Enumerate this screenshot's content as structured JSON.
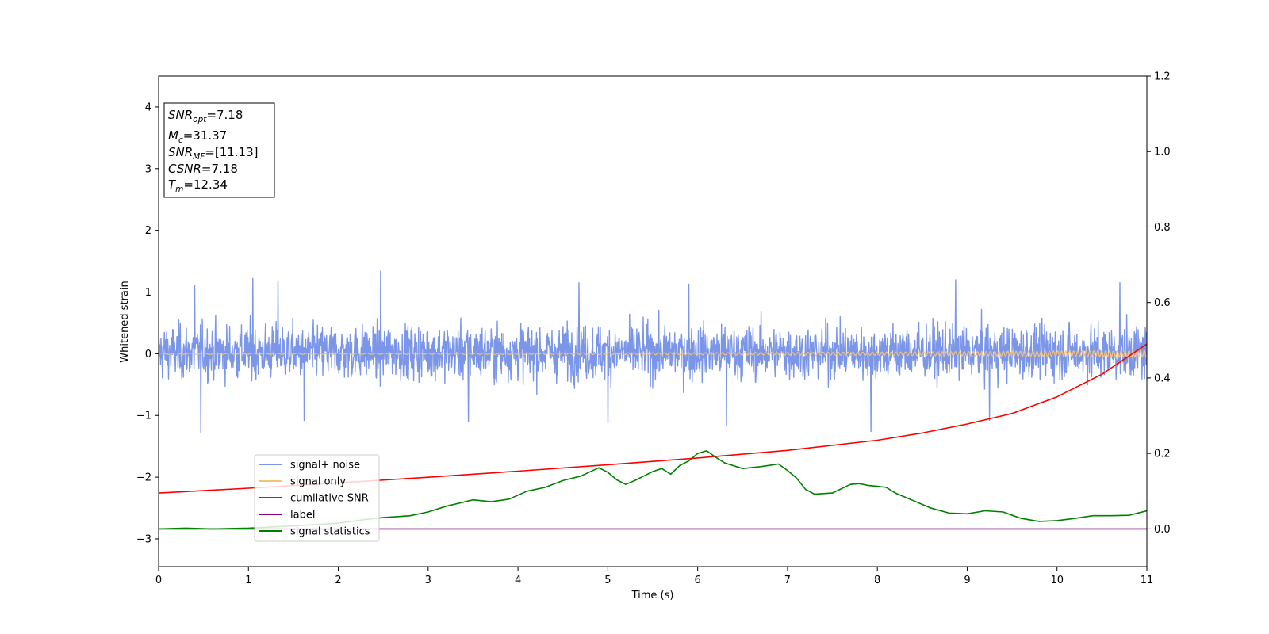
{
  "chart_data": {
    "type": "line",
    "title": "",
    "xlabel": "Time (s)",
    "ylabel": "Whitened strain",
    "y2label": "",
    "xlim": [
      0,
      11
    ],
    "ylim": [
      -3.45,
      4.5
    ],
    "y2lim": [
      -0.1,
      1.2
    ],
    "xticks": [
      "0",
      "1",
      "2",
      "3",
      "4",
      "5",
      "6",
      "7",
      "8",
      "9",
      "10",
      "11"
    ],
    "yticks": [
      "−3",
      "−2",
      "−1",
      "0",
      "1",
      "2",
      "3",
      "4"
    ],
    "y2ticks": [
      "0.0",
      "0.2",
      "0.4",
      "0.6",
      "0.8",
      "1.0",
      "1.2"
    ],
    "grid": false,
    "legend_position": "lower-left",
    "annotation": [
      {
        "sym": "SNR",
        "sub": "opt",
        "value": "=7.18"
      },
      {
        "sym": "M",
        "sub": "c",
        "value": "=31.37"
      },
      {
        "sym": "SNR",
        "sub": "MF",
        "value": "=[11.13]"
      },
      {
        "sym": "CSNR",
        "sub": "",
        "value": "=7.18"
      },
      {
        "sym": "T",
        "sub": "m",
        "value": "=12.34"
      }
    ],
    "series": [
      {
        "name": "signal+ noise",
        "axis": "left",
        "color": "#7b96e8",
        "style": "noise",
        "band": [
          -0.7,
          0.75
        ],
        "peaks": [
          {
            "x": 0.4,
            "y": 1.1
          },
          {
            "x": 0.47,
            "y": -1.28
          },
          {
            "x": 1.05,
            "y": 1.22
          },
          {
            "x": 1.33,
            "y": 1.17
          },
          {
            "x": 1.62,
            "y": -1.08
          },
          {
            "x": 2.47,
            "y": 1.34
          },
          {
            "x": 3.45,
            "y": -1.1
          },
          {
            "x": 4.68,
            "y": 1.15
          },
          {
            "x": 5.0,
            "y": -1.12
          },
          {
            "x": 5.9,
            "y": 1.13
          },
          {
            "x": 6.32,
            "y": -1.17
          },
          {
            "x": 7.93,
            "y": -1.26
          },
          {
            "x": 8.87,
            "y": 1.2
          },
          {
            "x": 9.25,
            "y": -1.08
          },
          {
            "x": 10.7,
            "y": 1.15
          }
        ]
      },
      {
        "name": "signal only",
        "axis": "left",
        "color": "#f5c27a",
        "style": "chirp",
        "amplitude_start": 0.01,
        "amplitude_end": 0.06
      },
      {
        "name": "cumilative SNR",
        "axis": "right",
        "color": "#ff0000",
        "x": [
          0,
          1,
          2,
          3,
          4,
          5,
          6,
          7,
          8,
          8.5,
          9,
          9.5,
          10,
          10.5,
          11
        ],
        "y": [
          0.095,
          0.108,
          0.122,
          0.137,
          0.153,
          0.17,
          0.188,
          0.208,
          0.235,
          0.254,
          0.278,
          0.306,
          0.35,
          0.41,
          0.49
        ]
      },
      {
        "name": "label",
        "axis": "right",
        "color": "#800080",
        "x": [
          0,
          11
        ],
        "y": [
          0.0,
          0.0
        ]
      },
      {
        "name": "signal statistics",
        "axis": "right",
        "color": "#008000",
        "x": [
          0,
          0.3,
          0.6,
          1.0,
          1.5,
          2.0,
          2.3,
          2.5,
          2.8,
          3.0,
          3.2,
          3.5,
          3.7,
          3.9,
          4.1,
          4.3,
          4.5,
          4.7,
          4.9,
          5.0,
          5.1,
          5.2,
          5.3,
          5.4,
          5.5,
          5.6,
          5.7,
          5.8,
          5.9,
          6.0,
          6.1,
          6.2,
          6.3,
          6.5,
          6.7,
          6.9,
          7.0,
          7.1,
          7.2,
          7.3,
          7.5,
          7.7,
          7.8,
          7.9,
          8.0,
          8.1,
          8.2,
          8.4,
          8.6,
          8.8,
          9.0,
          9.2,
          9.4,
          9.6,
          9.8,
          10.0,
          10.2,
          10.4,
          10.6,
          10.8,
          11.0
        ],
        "y": [
          0.0,
          0.002,
          0.0,
          0.002,
          0.008,
          0.015,
          0.025,
          0.03,
          0.035,
          0.045,
          0.06,
          0.077,
          0.072,
          0.079,
          0.1,
          0.11,
          0.128,
          0.14,
          0.162,
          0.15,
          0.13,
          0.118,
          0.128,
          0.14,
          0.152,
          0.16,
          0.145,
          0.168,
          0.18,
          0.2,
          0.207,
          0.19,
          0.175,
          0.16,
          0.165,
          0.172,
          0.155,
          0.135,
          0.105,
          0.092,
          0.095,
          0.118,
          0.12,
          0.115,
          0.113,
          0.11,
          0.095,
          0.075,
          0.055,
          0.042,
          0.04,
          0.048,
          0.045,
          0.028,
          0.02,
          0.022,
          0.028,
          0.035,
          0.035,
          0.036,
          0.048
        ]
      }
    ]
  }
}
